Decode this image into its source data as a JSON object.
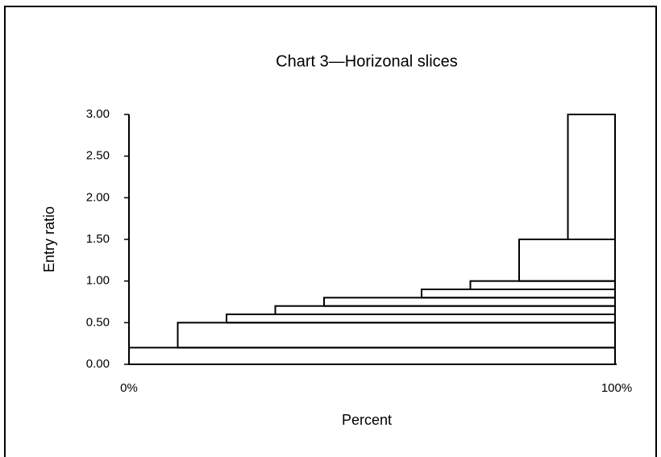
{
  "chart_data": {
    "type": "slices",
    "title": "Chart 3—Horizonal slices",
    "x_label": "Percent",
    "y_label": "Entry ratio",
    "x": [
      0,
      10,
      20,
      30,
      40,
      60,
      70,
      80,
      90
    ],
    "values": [
      0.2,
      0.5,
      0.6,
      0.7,
      0.8,
      0.9,
      1.0,
      1.5,
      3.0
    ],
    "xlim": [
      0,
      100
    ],
    "xticks": [
      {
        "value": 0,
        "label": "0%"
      },
      {
        "value": 100,
        "label": "100%"
      }
    ],
    "ylim": [
      0,
      3
    ],
    "yticks": [
      {
        "value": 0,
        "label": "0.00"
      },
      {
        "value": 0.5,
        "label": "0.50"
      },
      {
        "value": 1,
        "label": "1.00"
      },
      {
        "value": 1.5,
        "label": "1.50"
      },
      {
        "value": 2,
        "label": "2.00"
      },
      {
        "value": 2.5,
        "label": "2.50"
      },
      {
        "value": 3,
        "label": "3.00"
      }
    ],
    "color": "#000000"
  }
}
